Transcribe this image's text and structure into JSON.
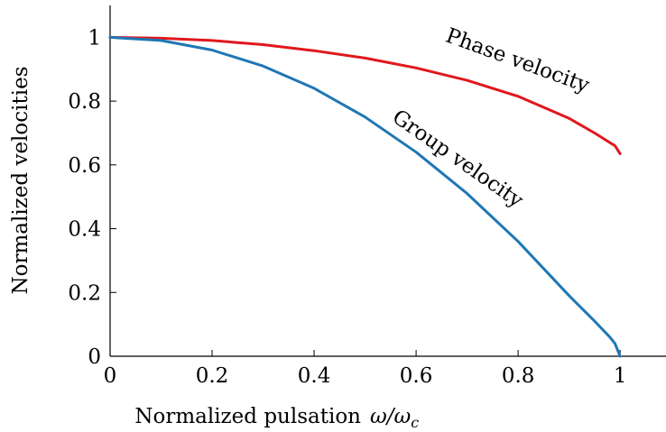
{
  "chart_data": {
    "type": "line",
    "xlabel": "Normalized pulsation",
    "xlabel_math": "ω/ω",
    "xlabel_math_sub": "c",
    "ylabel": "Normalized velocities",
    "xlim": [
      0,
      1.09
    ],
    "ylim": [
      0,
      1.1
    ],
    "x_ticks": [
      0,
      0.2,
      0.4,
      0.6,
      0.8,
      1
    ],
    "x_tick_labels": [
      "0",
      "0.2",
      "0.4",
      "0.6",
      "0.8",
      "1"
    ],
    "y_ticks": [
      0,
      0.2,
      0.4,
      0.6,
      0.8,
      1
    ],
    "y_tick_labels": [
      "0",
      "0.2",
      "0.4",
      "0.6",
      "0.8",
      "1"
    ],
    "grid": false,
    "series": [
      {
        "name": "Phase velocity",
        "color": "#e0181e",
        "x": [
          0,
          0.1,
          0.2,
          0.3,
          0.4,
          0.5,
          0.6,
          0.7,
          0.8,
          0.9,
          0.95,
          0.98,
          0.99,
          1.0
        ],
        "values": [
          1.0,
          0.997,
          0.99,
          0.977,
          0.958,
          0.935,
          0.904,
          0.865,
          0.815,
          0.746,
          0.7,
          0.67,
          0.66,
          0.635
        ]
      },
      {
        "name": "Group velocity",
        "color": "#1f77b4",
        "x": [
          0,
          0.1,
          0.2,
          0.3,
          0.4,
          0.5,
          0.6,
          0.7,
          0.8,
          0.9,
          0.95,
          0.98,
          0.99,
          1.0
        ],
        "values": [
          1.0,
          0.99,
          0.96,
          0.91,
          0.84,
          0.75,
          0.64,
          0.51,
          0.36,
          0.19,
          0.11,
          0.06,
          0.04,
          0.0
        ]
      }
    ]
  }
}
